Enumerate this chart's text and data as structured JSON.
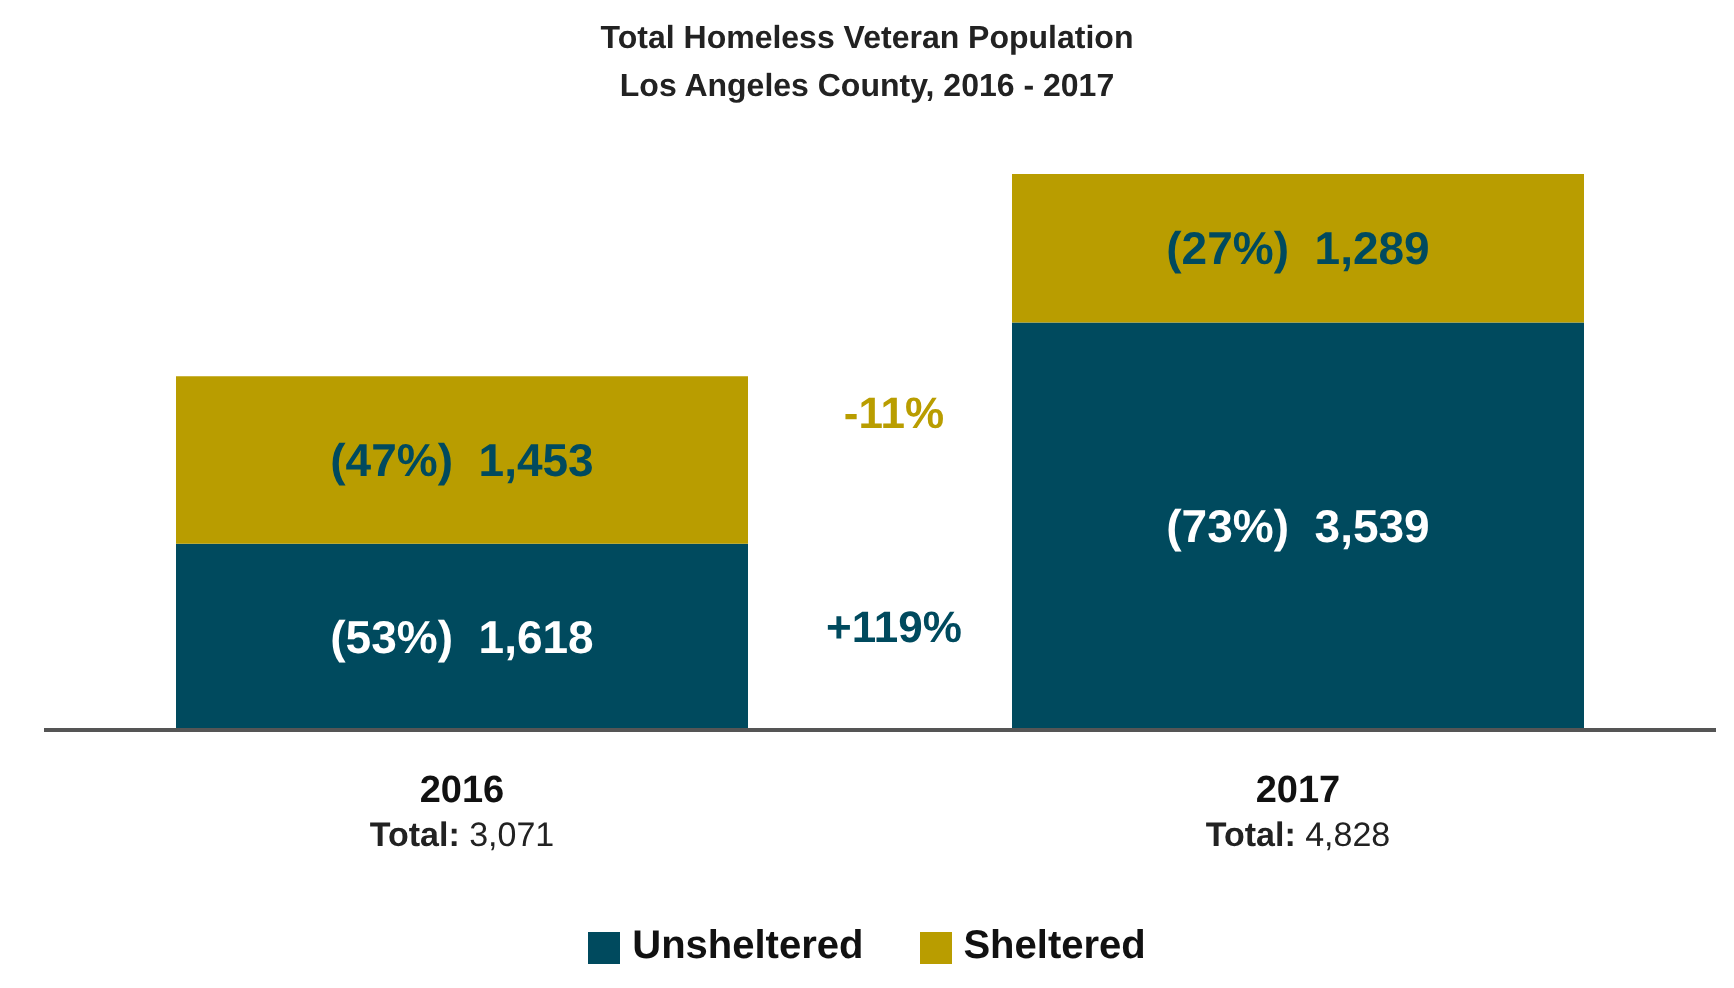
{
  "chart_data": {
    "type": "bar",
    "title": "Total Homeless Veteran Population",
    "subtitle": "Los Angeles County, 2016 - 2017",
    "categories": [
      "2016",
      "2017"
    ],
    "stacked": true,
    "legend": "bottom",
    "totals": [
      "Total: 3,071",
      "Total: 4,828"
    ],
    "series": [
      {
        "name": "Unsheltered",
        "color": "#004a5e",
        "values": [
          1618,
          3539
        ],
        "value_labels": [
          "(53%)  1,618",
          "(73%)  3,539"
        ]
      },
      {
        "name": "Sheltered",
        "color": "#b99d00",
        "values": [
          1453,
          1289
        ],
        "value_labels": [
          "(47%)  1,453",
          "(27%)  1,289"
        ]
      }
    ],
    "annotations": [
      "-11%",
      "+119%"
    ]
  }
}
